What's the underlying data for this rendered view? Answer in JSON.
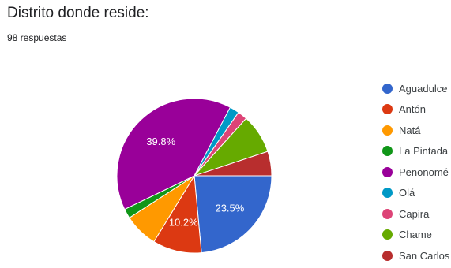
{
  "header": {
    "title": "Distrito donde reside:",
    "subtitle": "98 respuestas"
  },
  "chart_data": {
    "type": "pie",
    "title": "Distrito donde reside:",
    "legend_position": "right",
    "categories": [
      "Aguadulce",
      "Antón",
      "Natá",
      "La Pintada",
      "Penonomé",
      "Olá",
      "Capira",
      "Chame",
      "San Carlos"
    ],
    "values": [
      23.5,
      10.2,
      7.1,
      2.0,
      39.8,
      2.0,
      2.0,
      8.2,
      5.1
    ],
    "data_labels": [
      "23.5%",
      "10.2%",
      "",
      "",
      "39.8%",
      "",
      "",
      "",
      ""
    ],
    "colors": [
      "#3366cc",
      "#dc3912",
      "#ff9900",
      "#109618",
      "#990099",
      "#0099c6",
      "#dd4477",
      "#66aa00",
      "#b82e2e"
    ]
  }
}
